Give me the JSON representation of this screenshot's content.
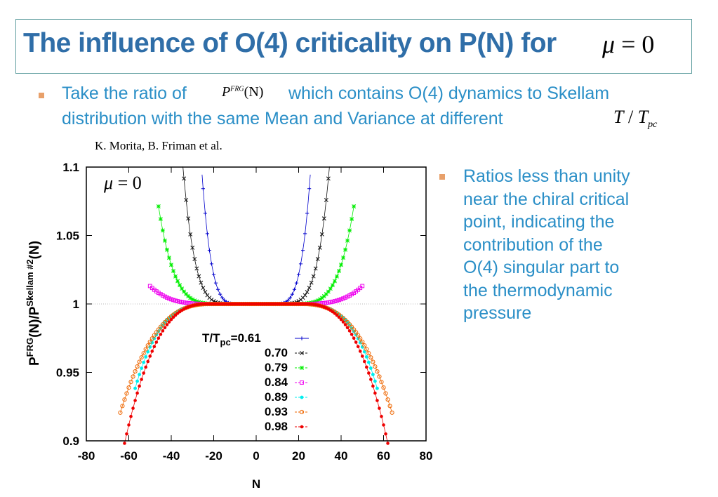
{
  "slide": {
    "title": "The influence of O(4) criticality on  P(N) for",
    "title_math_var": "μ",
    "title_math_eq": " = 0",
    "bullet1_part1": "Take the ratio of",
    "bullet1_math_P": "P",
    "bullet1_math_sup": "FRG",
    "bullet1_math_arg": "(N)",
    "bullet1_part2": "which contains O(4) dynamics to Skellam",
    "bullet1_line2": "distribution with the same Mean and Variance at different",
    "bullet1_math_T": "T",
    "bullet1_math_slash": " / ",
    "bullet1_math_T2": "T",
    "bullet1_math_sub": "pc",
    "citation": "K. Morita, B. Friman et al.",
    "right_bullet_lines": [
      "Ratios less than unity",
      "near the chiral critical",
      "point,  indicating the",
      "contribution  of  the",
      "O(4) singular part to",
      "the thermodynamic",
      "pressure"
    ],
    "colors": {
      "title": "#2f6ea8",
      "body": "#2b8fc7",
      "bullet": "#e8a06a",
      "frame": "#5f9ea0"
    }
  },
  "chart_data": {
    "type": "scatter",
    "inner_label": "μ = 0",
    "xlabel": "N",
    "ylabel_main": "P",
    "ylabel_sup1": "FRG",
    "ylabel_mid": "(N)/P",
    "ylabel_sup2": "Skellam #2",
    "ylabel_end": "(N)",
    "xlim": [
      -80,
      80
    ],
    "ylim": [
      0.9,
      1.1
    ],
    "xticks": [
      "-80",
      "-60",
      "-40",
      "-20",
      "0",
      "20",
      "40",
      "60",
      "80"
    ],
    "yticks": [
      "0.9",
      "0.95",
      "1",
      "1.05",
      "1.1"
    ],
    "legend_title_prefix": "T/T",
    "legend_title_sub": "pc",
    "legend_title_value": "=0.61",
    "legend_position": "lower-center",
    "series": [
      {
        "name": "0.61",
        "color": "#0000cc",
        "marker": "+",
        "xmax": 28,
        "a": 4.5e-07,
        "flat": 7,
        "p": 4.2,
        "sign": 1
      },
      {
        "name": "0.70",
        "color": "#111111",
        "marker": "x",
        "xmax": 40,
        "a": 3.4e-08,
        "flat": 9,
        "p": 4.6,
        "sign": 1
      },
      {
        "name": "0.79",
        "color": "#00ee00",
        "marker": "*",
        "xmax": 46,
        "a": 1.7e-08,
        "flat": 14,
        "p": 4.4,
        "sign": 1
      },
      {
        "name": "0.84",
        "color": "#ee00ee",
        "marker": "s",
        "xmax": 50,
        "a": 5e-08,
        "flat": 18,
        "p": 3.6,
        "sign": 1
      },
      {
        "name": "0.89",
        "color": "#00eeee",
        "marker": "o",
        "xmax": 57,
        "a": 2.4e-07,
        "flat": 18,
        "p": 3.4,
        "sign": -1
      },
      {
        "name": "0.93",
        "color": "#ee6600",
        "marker": "c",
        "xmax": 64,
        "a": 2.4e-06,
        "flat": 20,
        "p": 2.75,
        "sign": -1
      },
      {
        "name": "0.98",
        "color": "#ee0000",
        "marker": "d",
        "xmax": 68,
        "a": 4e-06,
        "flat": 22,
        "p": 2.75,
        "sign": -1
      }
    ]
  }
}
